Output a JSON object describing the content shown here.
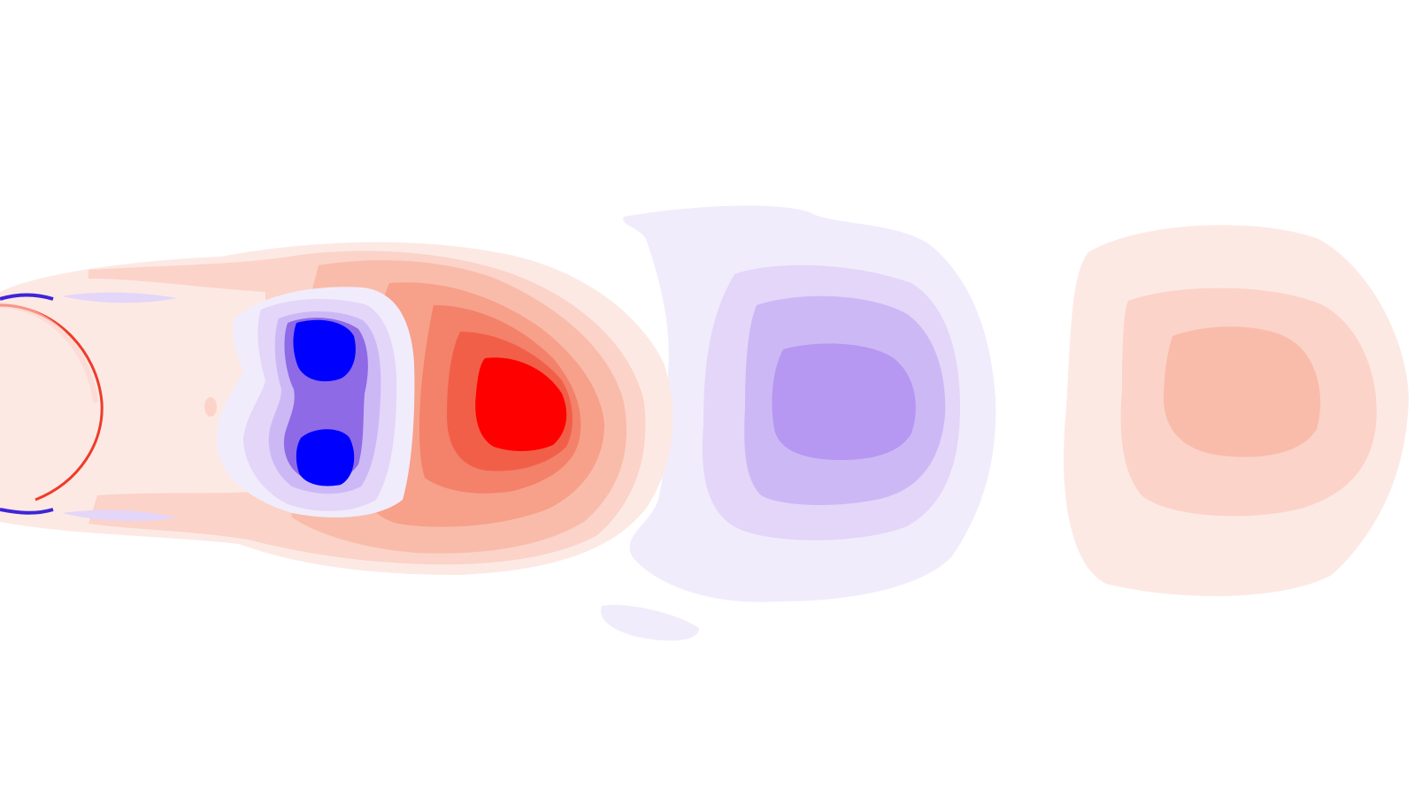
{
  "figure": {
    "kind": "contour-field",
    "palette": {
      "background": "#ffffff",
      "positive": [
        "#fde9e4",
        "#fbd3c9",
        "#f9bcaa",
        "#f7a08a",
        "#f4816a",
        "#f25f48",
        "#ef3b2a",
        "#ff0000"
      ],
      "negative": [
        "#f1ecfb",
        "#e3d6f9",
        "#cdb8f6",
        "#b08ff0",
        "#8e6ae6",
        "#6b45dc",
        "#3f24d8",
        "#0000ff"
      ]
    }
  }
}
